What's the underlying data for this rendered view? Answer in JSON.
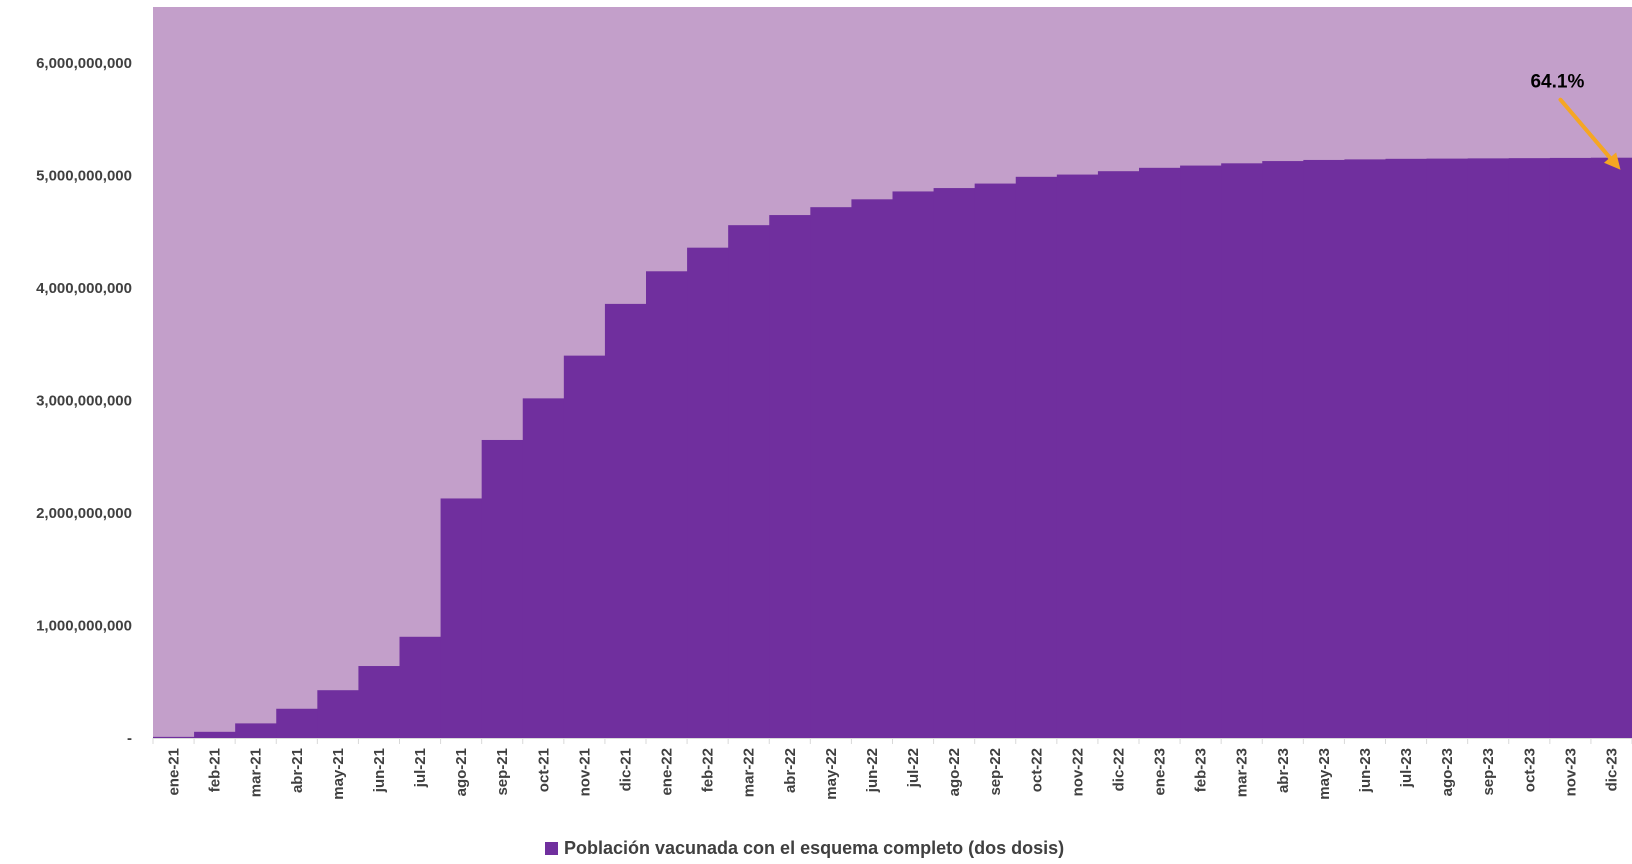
{
  "colors": {
    "background_area": "#c39fca",
    "series_fill": "#702f9e",
    "arrow": "#f5a623",
    "tick_text": "#404040",
    "annotation_text": "#000000"
  },
  "chart_data": {
    "type": "area",
    "step": true,
    "categories": [
      "ene-21",
      "feb-21",
      "mar-21",
      "abr-21",
      "may-21",
      "jun-21",
      "jul-21",
      "ago-21",
      "sep-21",
      "oct-21",
      "nov-21",
      "dic-21",
      "ene-22",
      "feb-22",
      "mar-22",
      "abr-22",
      "may-22",
      "jun-22",
      "jul-22",
      "ago-22",
      "sep-22",
      "oct-22",
      "nov-22",
      "dic-22",
      "ene-23",
      "feb-23",
      "mar-23",
      "abr-23",
      "may-23",
      "jun-23",
      "jul-23",
      "ago-23",
      "sep-23",
      "oct-23",
      "nov-23",
      "dic-23"
    ],
    "series": [
      {
        "name": "Población vacunada con el esquema completo (dos dosis)",
        "values": [
          10000000,
          55000000,
          130000000,
          260000000,
          425000000,
          640000000,
          900000000,
          2130000000,
          2650000000,
          3020000000,
          3400000000,
          3860000000,
          4150000000,
          4360000000,
          4560000000,
          4650000000,
          4720000000,
          4790000000,
          4860000000,
          4890000000,
          4930000000,
          4990000000,
          5010000000,
          5040000000,
          5070000000,
          5090000000,
          5110000000,
          5130000000,
          5140000000,
          5145000000,
          5150000000,
          5152000000,
          5154000000,
          5156000000,
          5158000000,
          5160000000
        ]
      }
    ],
    "background_total": 6500000000,
    "ylim": [
      0,
      6500000000
    ],
    "yticks": [
      0,
      1000000000,
      2000000000,
      3000000000,
      4000000000,
      5000000000,
      6000000000
    ],
    "ytick_labels": [
      "-",
      "1,000,000,000",
      "2,000,000,000",
      "3,000,000,000",
      "4,000,000,000",
      "5,000,000,000",
      "6,000,000,000"
    ],
    "annotation": {
      "text": "64.1%",
      "category": "dic-23"
    },
    "legend_position": "bottom",
    "title": "",
    "xlabel": "",
    "ylabel": "",
    "grid": false
  }
}
